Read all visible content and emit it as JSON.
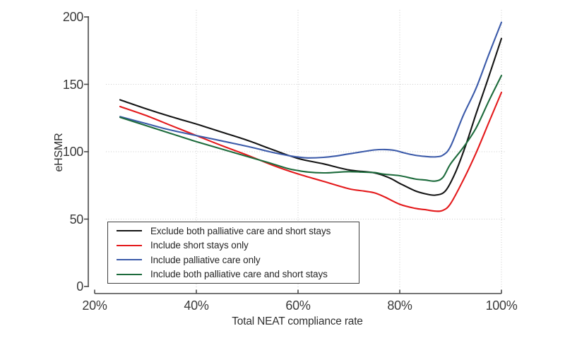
{
  "chart_data": {
    "type": "line",
    "title": "",
    "xlabel": "Total NEAT compliance rate",
    "ylabel": "eHSMR",
    "xlim_percent": [
      20,
      100
    ],
    "ylim": [
      0,
      200
    ],
    "x_tick_labels": [
      "20%",
      "40%",
      "60%",
      "80%",
      "100%"
    ],
    "x_tick_values_percent": [
      20,
      40,
      60,
      80,
      100
    ],
    "y_tick_labels": [
      "0",
      "50",
      "100",
      "150",
      "200"
    ],
    "y_tick_values": [
      0,
      50,
      100,
      150,
      200
    ],
    "grid": "dotted light-gray; horizontal at 50/100/150, vertical at 40%/60%/80%/100%",
    "legend_position": "lower-left boxed",
    "series": [
      {
        "name": "Exclude both palliative care and short stays",
        "color": "#141414",
        "points": [
          [
            25,
            138.5
          ],
          [
            30,
            132
          ],
          [
            35,
            126
          ],
          [
            40,
            120.5
          ],
          [
            45,
            114.5
          ],
          [
            50,
            108.5
          ],
          [
            55,
            101.5
          ],
          [
            60,
            95
          ],
          [
            65,
            91
          ],
          [
            70,
            86.5
          ],
          [
            75,
            84.3
          ],
          [
            78,
            80.5
          ],
          [
            80,
            76.5
          ],
          [
            83,
            71
          ],
          [
            85,
            68.8
          ],
          [
            87,
            67.8
          ],
          [
            89,
            71
          ],
          [
            91,
            85
          ],
          [
            93,
            105
          ],
          [
            95,
            128
          ],
          [
            97,
            150
          ],
          [
            100,
            184
          ]
        ]
      },
      {
        "name": "Include short stays only",
        "color": "#e41a1c",
        "points": [
          [
            25,
            133.5
          ],
          [
            30,
            127
          ],
          [
            35,
            119.5
          ],
          [
            40,
            112
          ],
          [
            45,
            104.5
          ],
          [
            50,
            97.5
          ],
          [
            55,
            90
          ],
          [
            60,
            83.5
          ],
          [
            65,
            78
          ],
          [
            70,
            72.5
          ],
          [
            73,
            70.8
          ],
          [
            75,
            69.5
          ],
          [
            77,
            66.5
          ],
          [
            80,
            61
          ],
          [
            83,
            58
          ],
          [
            85,
            57
          ],
          [
            87,
            55.9
          ],
          [
            88.5,
            56.5
          ],
          [
            90,
            61.5
          ],
          [
            92.5,
            79
          ],
          [
            95,
            99
          ],
          [
            97.5,
            121.5
          ],
          [
            100,
            144
          ]
        ]
      },
      {
        "name": "Include palliative care only",
        "color": "#3b5aa9",
        "points": [
          [
            25,
            126
          ],
          [
            30,
            121
          ],
          [
            35,
            116
          ],
          [
            40,
            112
          ],
          [
            45,
            108
          ],
          [
            50,
            104
          ],
          [
            55,
            99.5
          ],
          [
            58,
            97.2
          ],
          [
            60,
            96
          ],
          [
            62,
            95.4
          ],
          [
            65,
            95.8
          ],
          [
            67.5,
            96.8
          ],
          [
            70,
            98.4
          ],
          [
            72.5,
            99.9
          ],
          [
            75,
            101.3
          ],
          [
            77,
            101.6
          ],
          [
            79,
            101
          ],
          [
            81,
            99
          ],
          [
            83,
            97.4
          ],
          [
            85,
            96.5
          ],
          [
            87,
            96.2
          ],
          [
            88.5,
            97.5
          ],
          [
            90,
            104
          ],
          [
            92.5,
            127
          ],
          [
            95,
            147
          ],
          [
            97.5,
            172
          ],
          [
            100,
            196
          ]
        ]
      },
      {
        "name": "Include both palliative care and short stays",
        "color": "#1d6b3c",
        "points": [
          [
            25,
            125.5
          ],
          [
            30,
            119.5
          ],
          [
            35,
            113.5
          ],
          [
            40,
            107.5
          ],
          [
            45,
            102
          ],
          [
            50,
            96.5
          ],
          [
            55,
            91
          ],
          [
            58,
            87.5
          ],
          [
            60,
            86
          ],
          [
            62,
            84.9
          ],
          [
            65,
            84.3
          ],
          [
            67.5,
            84.7
          ],
          [
            70,
            85.2
          ],
          [
            72.5,
            84.9
          ],
          [
            75,
            84.5
          ],
          [
            77,
            83.3
          ],
          [
            80,
            82.2
          ],
          [
            83,
            79.8
          ],
          [
            85,
            79
          ],
          [
            87,
            78.2
          ],
          [
            88.5,
            81
          ],
          [
            90,
            91
          ],
          [
            92.5,
            103.2
          ],
          [
            95,
            117.5
          ],
          [
            97.5,
            137.5
          ],
          [
            100,
            156.5
          ]
        ]
      }
    ]
  }
}
